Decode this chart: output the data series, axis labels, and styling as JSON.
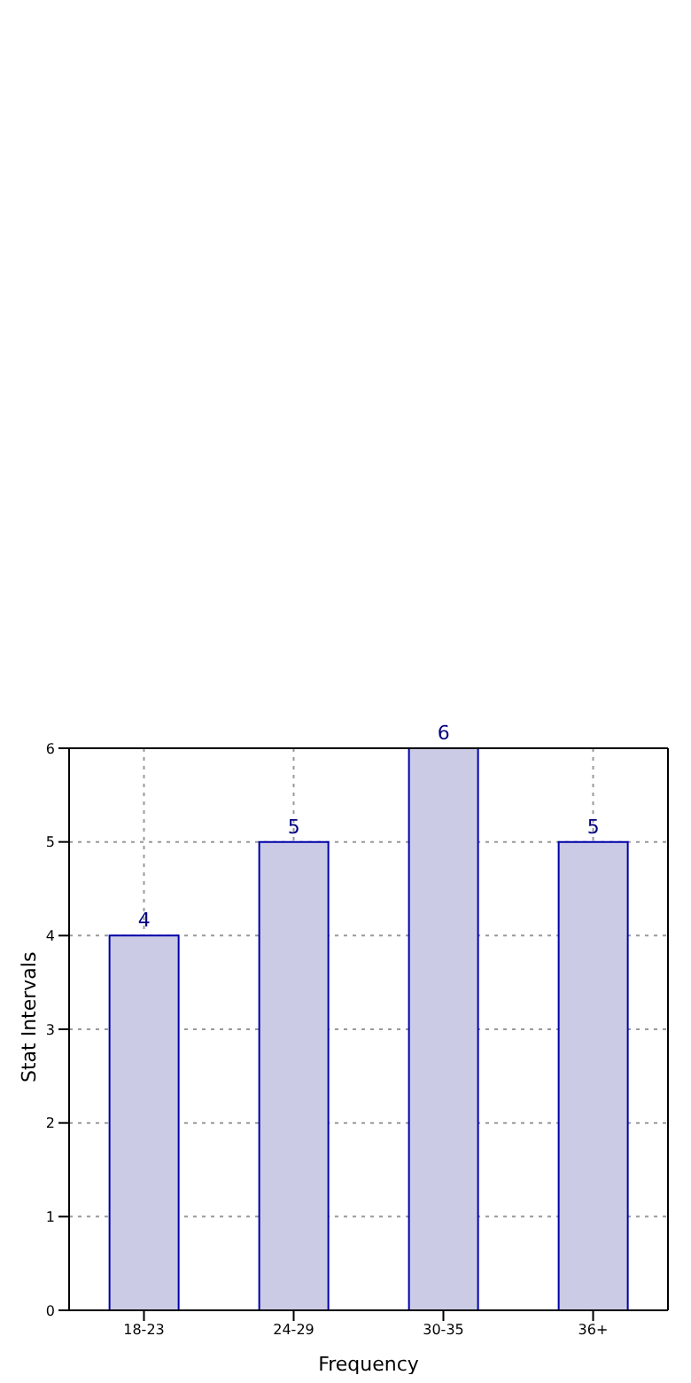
{
  "chart_data": {
    "type": "bar",
    "xlabel": "Frequency",
    "ylabel": "Stat Intervals",
    "categories": [
      "18-23",
      "24-29",
      "30-35",
      "36+"
    ],
    "values": [
      4,
      5,
      6,
      5
    ],
    "color": "#cbcbe6",
    "ylim": [
      0,
      6
    ],
    "yticks": [
      0,
      1,
      2,
      3,
      4,
      5,
      6
    ],
    "grid": true,
    "data_labels": true
  }
}
